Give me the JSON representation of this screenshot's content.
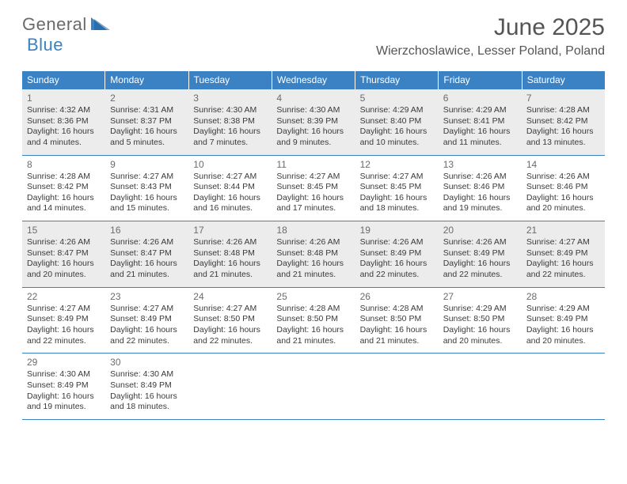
{
  "brand": {
    "part1": "General",
    "part2": "Blue"
  },
  "colors": {
    "accent": "#3b82c4",
    "header_text": "#555555",
    "logo_gray": "#6a6a6a",
    "shaded_bg": "#ececec",
    "daynum": "#6b6b6b",
    "body_text": "#3a3a3a"
  },
  "title": "June 2025",
  "location": "Wierzchoslawice, Lesser Poland, Poland",
  "weekdays": [
    "Sunday",
    "Monday",
    "Tuesday",
    "Wednesday",
    "Thursday",
    "Friday",
    "Saturday"
  ],
  "shaded_weeks": [
    0,
    2
  ],
  "weeks": [
    [
      {
        "n": "1",
        "sr": "4:32 AM",
        "ss": "8:36 PM",
        "dl": "16 hours and 4 minutes."
      },
      {
        "n": "2",
        "sr": "4:31 AM",
        "ss": "8:37 PM",
        "dl": "16 hours and 5 minutes."
      },
      {
        "n": "3",
        "sr": "4:30 AM",
        "ss": "8:38 PM",
        "dl": "16 hours and 7 minutes."
      },
      {
        "n": "4",
        "sr": "4:30 AM",
        "ss": "8:39 PM",
        "dl": "16 hours and 9 minutes."
      },
      {
        "n": "5",
        "sr": "4:29 AM",
        "ss": "8:40 PM",
        "dl": "16 hours and 10 minutes."
      },
      {
        "n": "6",
        "sr": "4:29 AM",
        "ss": "8:41 PM",
        "dl": "16 hours and 11 minutes."
      },
      {
        "n": "7",
        "sr": "4:28 AM",
        "ss": "8:42 PM",
        "dl": "16 hours and 13 minutes."
      }
    ],
    [
      {
        "n": "8",
        "sr": "4:28 AM",
        "ss": "8:42 PM",
        "dl": "16 hours and 14 minutes."
      },
      {
        "n": "9",
        "sr": "4:27 AM",
        "ss": "8:43 PM",
        "dl": "16 hours and 15 minutes."
      },
      {
        "n": "10",
        "sr": "4:27 AM",
        "ss": "8:44 PM",
        "dl": "16 hours and 16 minutes."
      },
      {
        "n": "11",
        "sr": "4:27 AM",
        "ss": "8:45 PM",
        "dl": "16 hours and 17 minutes."
      },
      {
        "n": "12",
        "sr": "4:27 AM",
        "ss": "8:45 PM",
        "dl": "16 hours and 18 minutes."
      },
      {
        "n": "13",
        "sr": "4:26 AM",
        "ss": "8:46 PM",
        "dl": "16 hours and 19 minutes."
      },
      {
        "n": "14",
        "sr": "4:26 AM",
        "ss": "8:46 PM",
        "dl": "16 hours and 20 minutes."
      }
    ],
    [
      {
        "n": "15",
        "sr": "4:26 AM",
        "ss": "8:47 PM",
        "dl": "16 hours and 20 minutes."
      },
      {
        "n": "16",
        "sr": "4:26 AM",
        "ss": "8:47 PM",
        "dl": "16 hours and 21 minutes."
      },
      {
        "n": "17",
        "sr": "4:26 AM",
        "ss": "8:48 PM",
        "dl": "16 hours and 21 minutes."
      },
      {
        "n": "18",
        "sr": "4:26 AM",
        "ss": "8:48 PM",
        "dl": "16 hours and 21 minutes."
      },
      {
        "n": "19",
        "sr": "4:26 AM",
        "ss": "8:49 PM",
        "dl": "16 hours and 22 minutes."
      },
      {
        "n": "20",
        "sr": "4:26 AM",
        "ss": "8:49 PM",
        "dl": "16 hours and 22 minutes."
      },
      {
        "n": "21",
        "sr": "4:27 AM",
        "ss": "8:49 PM",
        "dl": "16 hours and 22 minutes."
      }
    ],
    [
      {
        "n": "22",
        "sr": "4:27 AM",
        "ss": "8:49 PM",
        "dl": "16 hours and 22 minutes."
      },
      {
        "n": "23",
        "sr": "4:27 AM",
        "ss": "8:49 PM",
        "dl": "16 hours and 22 minutes."
      },
      {
        "n": "24",
        "sr": "4:27 AM",
        "ss": "8:50 PM",
        "dl": "16 hours and 22 minutes."
      },
      {
        "n": "25",
        "sr": "4:28 AM",
        "ss": "8:50 PM",
        "dl": "16 hours and 21 minutes."
      },
      {
        "n": "26",
        "sr": "4:28 AM",
        "ss": "8:50 PM",
        "dl": "16 hours and 21 minutes."
      },
      {
        "n": "27",
        "sr": "4:29 AM",
        "ss": "8:50 PM",
        "dl": "16 hours and 20 minutes."
      },
      {
        "n": "28",
        "sr": "4:29 AM",
        "ss": "8:49 PM",
        "dl": "16 hours and 20 minutes."
      }
    ],
    [
      {
        "n": "29",
        "sr": "4:30 AM",
        "ss": "8:49 PM",
        "dl": "16 hours and 19 minutes."
      },
      {
        "n": "30",
        "sr": "4:30 AM",
        "ss": "8:49 PM",
        "dl": "16 hours and 18 minutes."
      },
      null,
      null,
      null,
      null,
      null
    ]
  ],
  "labels": {
    "sunrise": "Sunrise: ",
    "sunset": "Sunset: ",
    "daylight": "Daylight: "
  }
}
